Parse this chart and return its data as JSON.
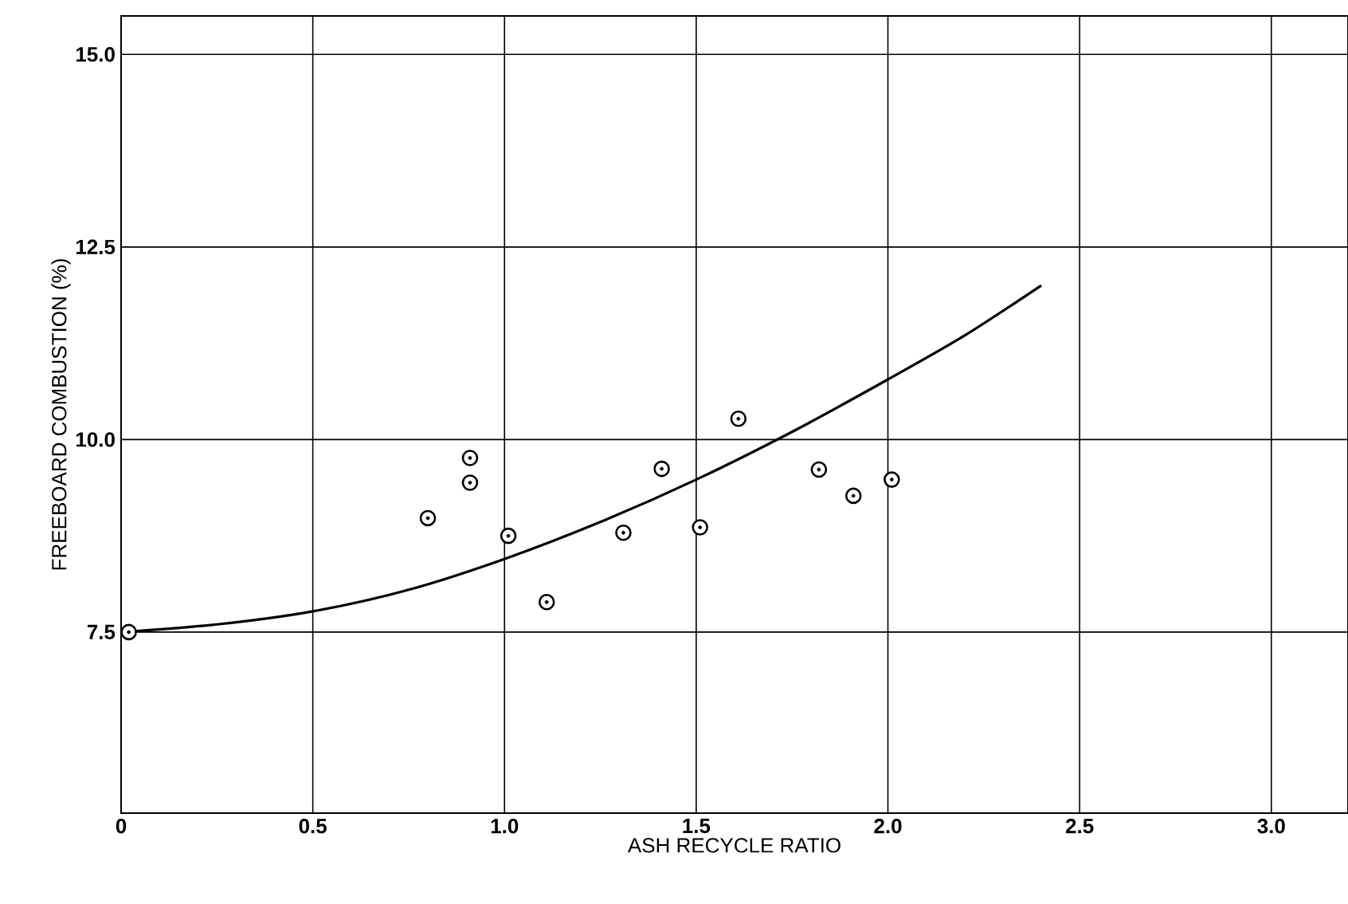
{
  "chart_data": {
    "type": "scatter",
    "xlabel": "ASH RECYCLE RATIO",
    "ylabel": "FREEBOARD COMBUSTION (%)",
    "xlim": [
      0,
      3.2
    ],
    "ylim": [
      5.15,
      15.5
    ],
    "xticks": [
      0,
      0.5,
      {
        "value": 1,
        "label": "1.0"
      },
      1.5,
      {
        "value": 2,
        "label": "2.0"
      },
      2.5,
      {
        "value": 3,
        "label": "3.0"
      }
    ],
    "yticks": [
      7.5,
      {
        "value": 10,
        "label": "10.0"
      },
      12.5,
      {
        "value": 15,
        "label": "15.0"
      }
    ],
    "grid": true,
    "marker": "circle",
    "series": [
      {
        "color": "#000000",
        "x": [
          0.02,
          0.8,
          0.91,
          0.91,
          1.01,
          1.11,
          1.31,
          1.41,
          1.51,
          1.61,
          1.82,
          1.91,
          2.01
        ],
        "values": [
          7.5,
          8.98,
          9.76,
          9.44,
          8.75,
          7.89,
          8.79,
          9.62,
          8.86,
          10.27,
          9.61,
          9.27,
          9.48
        ]
      },
      {
        "type": "line",
        "color": "#000000",
        "marker": "none",
        "x": [
          0,
          0.25,
          0.5,
          0.75,
          1.0,
          1.25,
          1.5,
          1.75,
          2.0,
          2.2,
          2.4
        ],
        "values": [
          7.5,
          7.6,
          7.77,
          8.05,
          8.45,
          8.93,
          9.48,
          10.1,
          10.78,
          11.35,
          12.0
        ]
      }
    ]
  }
}
